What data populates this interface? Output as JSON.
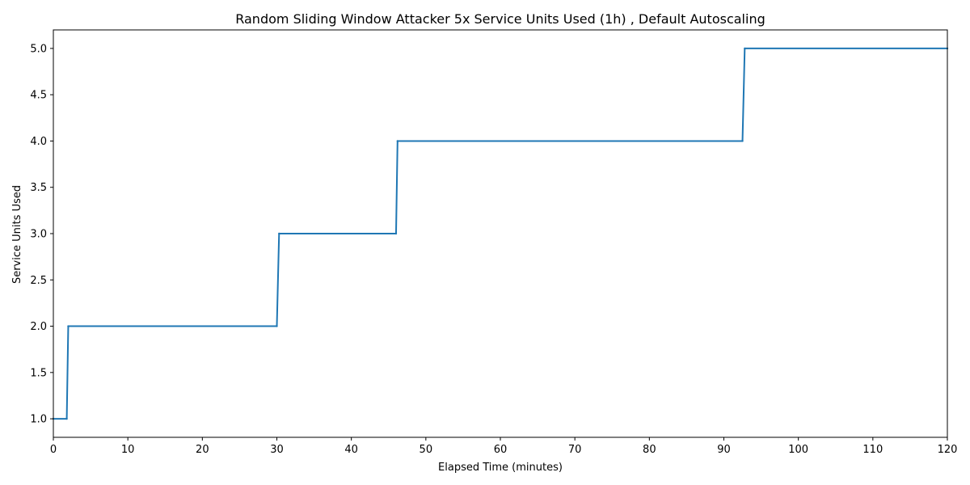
{
  "chart_data": {
    "type": "line",
    "title": "Random Sliding Window Attacker 5x Service Units Used (1h) , Default Autoscaling",
    "xlabel": "Elapsed Time (minutes)",
    "ylabel": "Service Units Used",
    "xlim": [
      0,
      120
    ],
    "ylim": [
      0.8,
      5.2
    ],
    "xticks": [
      0,
      10,
      20,
      30,
      40,
      50,
      60,
      70,
      80,
      90,
      100,
      110,
      120
    ],
    "xtick_labels": [
      "0",
      "10",
      "20",
      "30",
      "40",
      "50",
      "60",
      "70",
      "80",
      "90",
      "100",
      "110",
      "120"
    ],
    "yticks": [
      1.0,
      1.5,
      2.0,
      2.5,
      3.0,
      3.5,
      4.0,
      4.5,
      5.0
    ],
    "ytick_labels": [
      "1.0",
      "1.5",
      "2.0",
      "2.5",
      "3.0",
      "3.5",
      "4.0",
      "4.5",
      "5.0"
    ],
    "grid": false,
    "color": "#1f77b4",
    "series": [
      {
        "x": [
          0,
          1.8,
          2.0,
          30.0,
          30.3,
          46.0,
          46.2,
          92.5,
          92.8,
          120
        ],
        "values": [
          1,
          1,
          2,
          2,
          3,
          3,
          4,
          4,
          5,
          5
        ]
      }
    ]
  }
}
